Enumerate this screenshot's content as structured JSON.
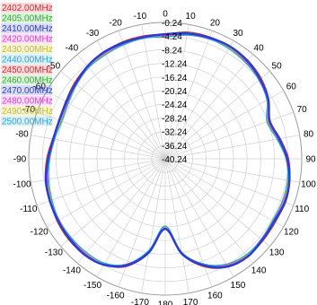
{
  "chart_data": {
    "type": "polar-line",
    "title": "",
    "angular_unit": "degrees",
    "angle_zero": "top",
    "angle_direction": "clockwise",
    "angle_tick_labels": [
      "0",
      "10",
      "20",
      "30",
      "40",
      "50",
      "60",
      "70",
      "80",
      "90",
      "100",
      "110",
      "120",
      "130",
      "140",
      "150",
      "160",
      "170",
      "180",
      "-170",
      "-160",
      "-150",
      "-140",
      "-130",
      "-120",
      "-110",
      "-100",
      "-90",
      "-80",
      "-70",
      "-60",
      "-50",
      "-40",
      "-30",
      "-20",
      "-10"
    ],
    "radial_tick_labels": [
      "-0.24",
      "-4.24",
      "-8.24",
      "-12.24",
      "-16.24",
      "-20.24",
      "-24.24",
      "-28.24",
      "-32.24",
      "-36.24",
      "-40.24"
    ],
    "radial_range": [
      -40.24,
      -0.24
    ],
    "grid": true,
    "legend_position": "top-left",
    "series": [
      {
        "name": "2402.00MHz",
        "color": "#e8262b"
      },
      {
        "name": "2405.00MHz",
        "color": "#2fb12b"
      },
      {
        "name": "2410.00MHz",
        "color": "#2a3bd8"
      },
      {
        "name": "2420.00MHz",
        "color": "#e83ad6"
      },
      {
        "name": "2430.00MHz",
        "color": "#c9bf1c"
      },
      {
        "name": "2440.00MHz",
        "color": "#2aa8d8"
      },
      {
        "name": "2450.00MHz",
        "color": "#e8262b"
      },
      {
        "name": "2460.00MHz",
        "color": "#2fb12b"
      },
      {
        "name": "2470.00MHz",
        "color": "#2a3bd8"
      },
      {
        "name": "2480.00MHz",
        "color": "#e83ad6"
      },
      {
        "name": "2490.00MHz",
        "color": "#c9bf1c"
      },
      {
        "name": "2500.00MHz",
        "color": "#2aa8d8"
      }
    ],
    "pattern_angles": [
      0,
      10,
      20,
      30,
      40,
      50,
      60,
      70,
      80,
      90,
      100,
      110,
      120,
      130,
      140,
      150,
      160,
      170,
      180,
      -170,
      -160,
      -150,
      -140,
      -130,
      -120,
      -110,
      -100,
      -90,
      -80,
      -70,
      -60,
      -50,
      -40,
      -30,
      -20,
      -10
    ],
    "pattern_values": [
      -4.0,
      -3.0,
      -2.5,
      -2.5,
      -3.0,
      -4.0,
      -5.5,
      -8.0,
      -6.5,
      -4.5,
      -3.5,
      -3.2,
      -3.5,
      -3.2,
      -3.0,
      -4.0,
      -7.0,
      -12.0,
      -20.0,
      -12.5,
      -7.0,
      -4.5,
      -3.8,
      -3.8,
      -4.0,
      -4.5,
      -5.0,
      -6.0,
      -7.0,
      -7.5,
      -7.0,
      -6.0,
      -5.0,
      -4.5,
      -4.2,
      -4.0
    ]
  }
}
